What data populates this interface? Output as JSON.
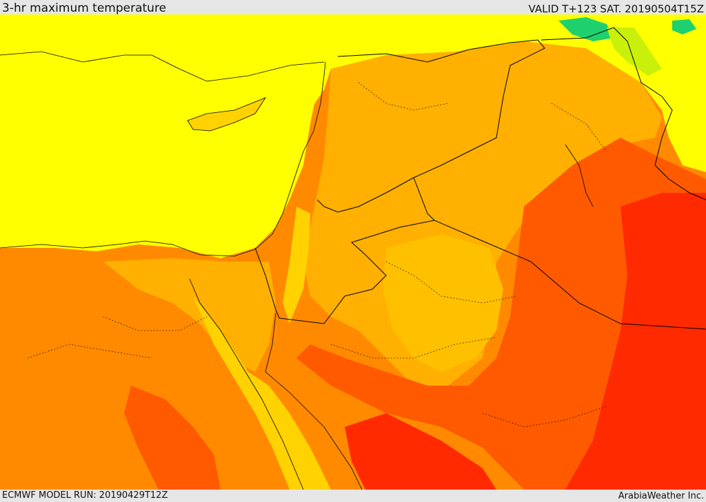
{
  "header": {
    "title": "3-hr maximum temperature",
    "valid_time": "VALID T+123 SAT. 20190504T15Z"
  },
  "footer": {
    "model_run": "ECMWF MODEL RUN: 20190429T12Z",
    "credit": "ArabiaWeather Inc."
  },
  "map": {
    "field": "maximum temperature",
    "colors": {
      "green": "#1fd16e",
      "yellow_green": "#c8f00a",
      "yellow": "#ffff00",
      "gold": "#ffd200",
      "orange_light": "#ffb000",
      "orange": "#ff8a00",
      "orange_red": "#ff5a00",
      "red": "#ff2a00",
      "border": "#000000"
    }
  }
}
